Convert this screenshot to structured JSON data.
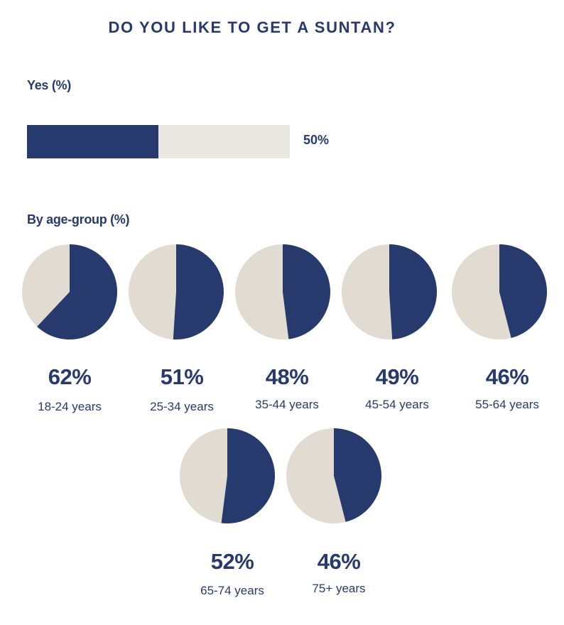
{
  "title": "DO YOU LIKE TO GET A SUNTAN?",
  "overall": {
    "label": "Yes (%)",
    "value": 50,
    "value_text": "50%"
  },
  "age_section": {
    "label": "By age-group (%)"
  },
  "colors": {
    "accent": "#273a6e",
    "remainder": "#e2dbd1",
    "bar_track": "#ebe7e1"
  },
  "chart_data": [
    {
      "type": "bar",
      "categories": [
        "Yes"
      ],
      "values": [
        50
      ],
      "ylabel": "Yes (%)",
      "ylim": [
        0,
        100
      ]
    },
    {
      "type": "pie",
      "title": "By age-group (%)",
      "series": [
        {
          "label": "18-24 years",
          "value": 62,
          "value_text": "62%"
        },
        {
          "label": "25-34 years",
          "value": 51,
          "value_text": "51%"
        },
        {
          "label": "35-44 years",
          "value": 48,
          "value_text": "48%"
        },
        {
          "label": "45-54 years",
          "value": 49,
          "value_text": "49%"
        },
        {
          "label": "55-64 years",
          "value": 46,
          "value_text": "46%"
        },
        {
          "label": "65-74 years",
          "value": 52,
          "value_text": "52%"
        },
        {
          "label": "75+ years",
          "value": 46,
          "value_text": "46%"
        }
      ]
    }
  ]
}
